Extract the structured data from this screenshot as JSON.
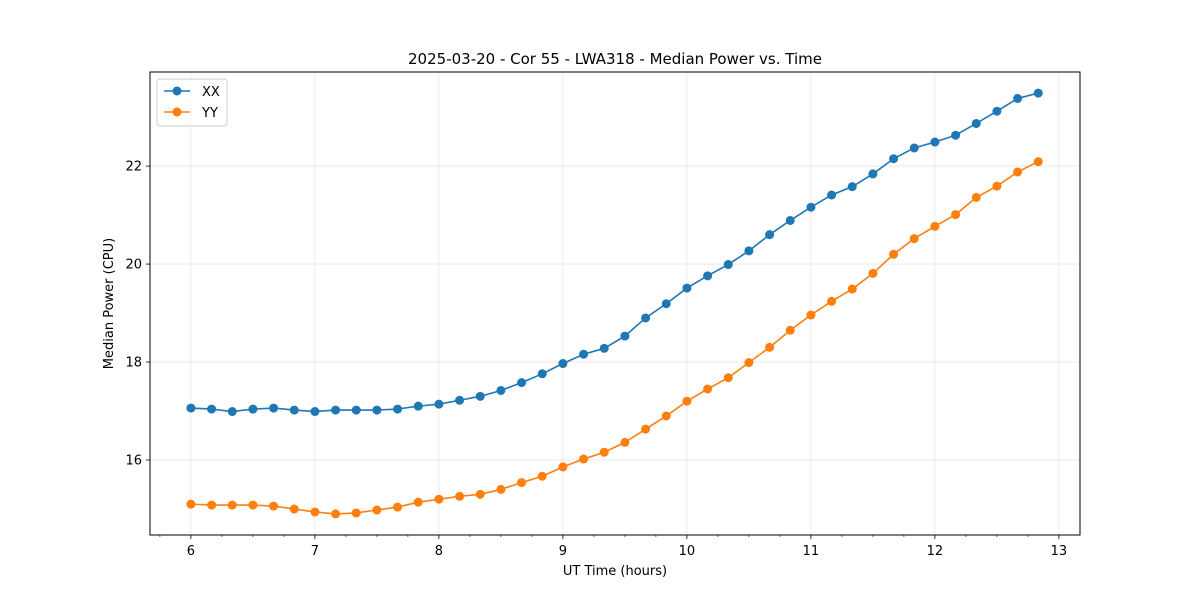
{
  "chart_data": {
    "type": "line",
    "title": "2025-03-20 - Cor 55 - LWA318 - Median Power vs. Time",
    "xlabel": "UT Time (hours)",
    "ylabel": "Median Power (CPU)",
    "xlim": [
      5.67,
      13.17
    ],
    "ylim": [
      14.47,
      23.92
    ],
    "xticks": [
      6,
      7,
      8,
      9,
      10,
      11,
      12,
      13
    ],
    "xtick_labels": [
      "6",
      "7",
      "8",
      "9",
      "10",
      "11",
      "12",
      "13"
    ],
    "minor_xticks_step": 0.25,
    "yticks": [
      16,
      18,
      20,
      22
    ],
    "ytick_labels": [
      "16",
      "18",
      "20",
      "22"
    ],
    "grid": true,
    "legend_position": "top-left",
    "x": [
      6.0,
      6.1667,
      6.3333,
      6.5,
      6.6667,
      6.8333,
      7.0,
      7.1667,
      7.3333,
      7.5,
      7.6667,
      7.8333,
      8.0,
      8.1667,
      8.3333,
      8.5,
      8.6667,
      8.8333,
      9.0,
      9.1667,
      9.3333,
      9.5,
      9.6667,
      9.8333,
      10.0,
      10.1667,
      10.3333,
      10.5,
      10.6667,
      10.8333,
      11.0,
      11.1667,
      11.3333,
      11.5,
      11.6667,
      11.8333,
      12.0,
      12.1667,
      12.3333,
      12.5,
      12.6667,
      12.8333
    ],
    "series": [
      {
        "name": "XX",
        "color": "#1f77b4",
        "values": [
          17.06,
          17.04,
          16.99,
          17.04,
          17.06,
          17.02,
          16.99,
          17.02,
          17.02,
          17.02,
          17.04,
          17.1,
          17.14,
          17.22,
          17.3,
          17.42,
          17.58,
          17.76,
          17.97,
          18.16,
          18.28,
          18.53,
          18.9,
          19.19,
          19.51,
          19.76,
          19.99,
          20.27,
          20.6,
          20.89,
          21.16,
          21.41,
          21.58,
          21.84,
          22.15,
          22.37,
          22.49,
          22.63,
          22.87,
          23.12,
          23.38,
          23.49
        ]
      },
      {
        "name": "YY",
        "color": "#ff7f0e",
        "values": [
          15.1,
          15.08,
          15.08,
          15.08,
          15.06,
          15.0,
          14.94,
          14.9,
          14.92,
          14.98,
          15.04,
          15.14,
          15.2,
          15.26,
          15.3,
          15.4,
          15.54,
          15.67,
          15.86,
          16.02,
          16.16,
          16.36,
          16.63,
          16.9,
          17.2,
          17.45,
          17.68,
          17.99,
          18.3,
          18.65,
          18.96,
          19.24,
          19.49,
          19.81,
          20.2,
          20.52,
          20.77,
          21.01,
          21.36,
          21.59,
          21.88,
          22.09
        ]
      }
    ]
  }
}
